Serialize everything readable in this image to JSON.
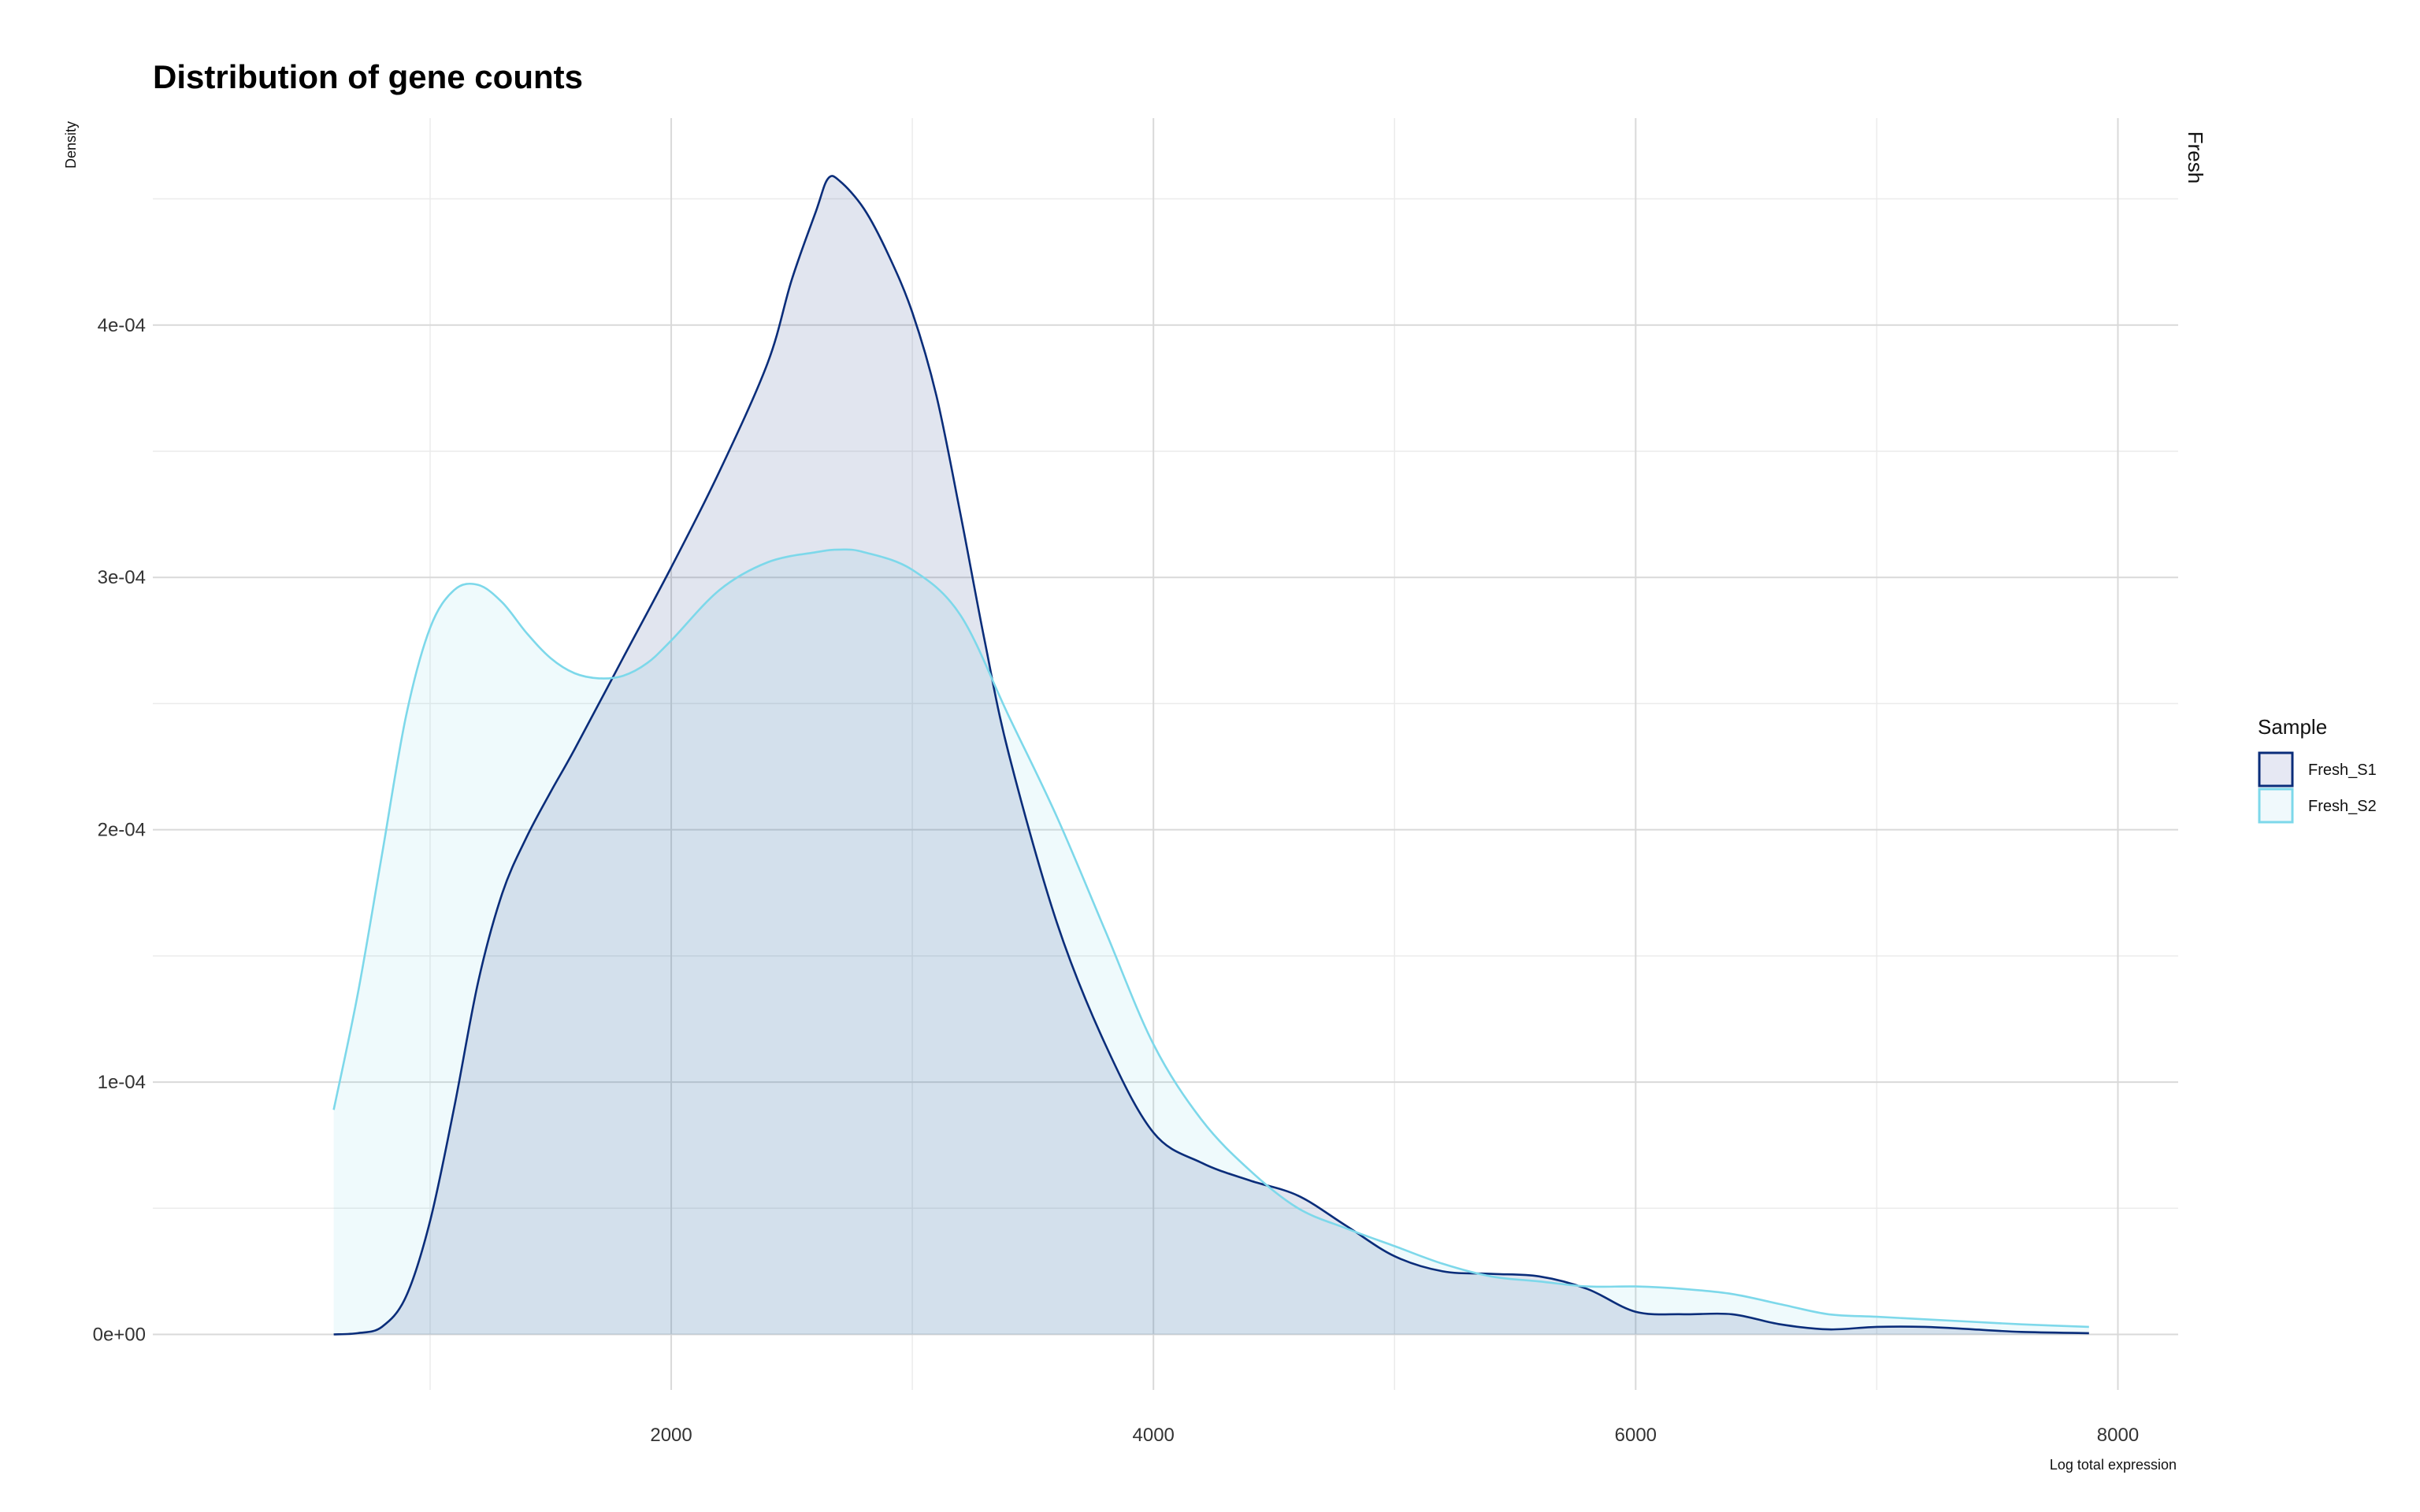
{
  "chart_data": {
    "type": "area",
    "title": "Distribution of gene counts",
    "xlabel": "Log total expression",
    "ylabel": "Density",
    "facet_label": "Fresh",
    "xlim": [
      -150,
      8250
    ],
    "ylim": [
      -2.2e-05,
      0.000482
    ],
    "x_ticks": [
      2000,
      4000,
      6000,
      8000
    ],
    "x_tick_labels": [
      "2000",
      "4000",
      "6000",
      "8000"
    ],
    "x_minor_gridlines": [
      1000,
      3000,
      5000,
      7000
    ],
    "y_ticks": [
      0,
      0.0001,
      0.0002,
      0.0003,
      0.0004
    ],
    "y_tick_labels": [
      "0e+00",
      "1e-04",
      "2e-04",
      "3e-04",
      "4e-04"
    ],
    "y_minor_gridlines": [
      5e-05,
      0.00015,
      0.00025,
      0.00035,
      0.00045
    ],
    "grid": true,
    "legend": {
      "title": "Sample",
      "position": "right"
    },
    "series": [
      {
        "name": "Fresh_S1",
        "color": "#0a2d7a",
        "fill": "#e6e8f3",
        "x": [
          600,
          700,
          800,
          900,
          1000,
          1100,
          1200,
          1300,
          1400,
          1500,
          1600,
          1800,
          2000,
          2200,
          2400,
          2500,
          2600,
          2650,
          2700,
          2800,
          2900,
          3000,
          3100,
          3200,
          3300,
          3400,
          3600,
          3800,
          4000,
          4200,
          4400,
          4600,
          4800,
          5000,
          5200,
          5400,
          5600,
          5800,
          6000,
          6200,
          6400,
          6600,
          6800,
          7000,
          7200,
          7400,
          7600,
          7880
        ],
        "values": [
          0.0,
          5e-07,
          3e-06,
          1.5e-05,
          4.5e-05,
          9e-05,
          0.00014,
          0.000175,
          0.000197,
          0.000215,
          0.000232,
          0.000268,
          0.000304,
          0.000342,
          0.000385,
          0.000418,
          0.000445,
          0.000458,
          0.000457,
          0.000446,
          0.000428,
          0.000405,
          0.000372,
          0.000325,
          0.000275,
          0.00023,
          0.000163,
          0.000115,
          8e-05,
          6.8e-05,
          6.1e-05,
          5.5e-05,
          4.3e-05,
          3.1e-05,
          2.5e-05,
          2.4e-05,
          2.3e-05,
          1.8e-05,
          9e-06,
          8e-06,
          8e-06,
          4e-06,
          2e-06,
          3e-06,
          3e-06,
          2e-06,
          1e-06,
          5e-07
        ]
      },
      {
        "name": "Fresh_S2",
        "color": "#7dd8ea",
        "fill": "#f0f9fc",
        "x": [
          600,
          700,
          800,
          900,
          1000,
          1100,
          1200,
          1300,
          1400,
          1500,
          1600,
          1700,
          1800,
          1900,
          2000,
          2200,
          2400,
          2600,
          2700,
          2800,
          3000,
          3200,
          3400,
          3600,
          3800,
          4000,
          4200,
          4400,
          4600,
          4800,
          5000,
          5200,
          5400,
          5600,
          5800,
          6000,
          6200,
          6400,
          6600,
          6800,
          7000,
          7200,
          7400,
          7600,
          7880
        ],
        "values": [
          8.9e-05,
          0.000135,
          0.00019,
          0.000245,
          0.00028,
          0.000295,
          0.000297,
          0.00029,
          0.000278,
          0.000268,
          0.000262,
          0.00026,
          0.000261,
          0.000266,
          0.000275,
          0.000295,
          0.000306,
          0.00031,
          0.000311,
          0.00031,
          0.000303,
          0.000285,
          0.000245,
          0.000205,
          0.00016,
          0.000115,
          8.5e-05,
          6.5e-05,
          5e-05,
          4.2e-05,
          3.5e-05,
          2.8e-05,
          2.3e-05,
          2.1e-05,
          1.9e-05,
          1.9e-05,
          1.8e-05,
          1.6e-05,
          1.2e-05,
          8e-06,
          7e-06,
          6e-06,
          5e-06,
          4e-06,
          3e-06
        ]
      }
    ]
  }
}
